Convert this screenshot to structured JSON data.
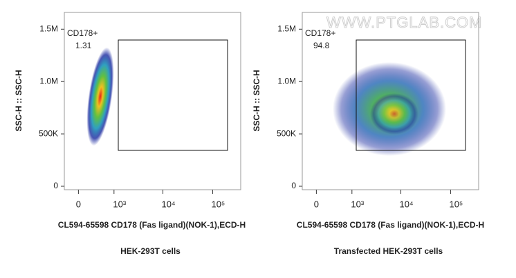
{
  "watermark": "WWW.PTGLAB.COM",
  "chart_data": [
    {
      "type": "scatter",
      "x_scale": "biexponential",
      "x_label": "CL594-65598 CD178 (Fas ligand)(NOK-1),ECD-H",
      "y_label": "SSC-H :: SSC-H",
      "caption": "HEK-293T cells",
      "gate_name": "CD178+",
      "gate_percent": 1.31,
      "xlim": [
        -280,
        367000
      ],
      "xticks": [
        0,
        {
          "value": 1000,
          "label": "10³"
        },
        {
          "value": 10000,
          "label": "10⁴"
        },
        {
          "value": 100000,
          "label": "10⁵"
        }
      ],
      "ylim": [
        -33000,
        1660000
      ],
      "yticks": [
        0,
        {
          "value": 500000,
          "label": "500K"
        },
        {
          "value": 1000000,
          "label": "1.0M"
        },
        {
          "value": 1500000,
          "label": "1.5M"
        }
      ]
    },
    {
      "type": "scatter",
      "x_scale": "biexponential",
      "x_label": "CL594-65598 CD178 (Fas ligand)(NOK-1),ECD-H",
      "y_label": "SSC-H :: SSC-H",
      "caption": "Transfected HEK-293T cells",
      "gate_name": "CD178+",
      "gate_percent": 94.8,
      "xlim": [
        -280,
        367000
      ],
      "xticks": [
        0,
        {
          "value": 1000,
          "label": "10³"
        },
        {
          "value": 10000,
          "label": "10⁴"
        },
        {
          "value": 100000,
          "label": "10⁵"
        }
      ],
      "ylim": [
        -33000,
        1660000
      ],
      "yticks": [
        0,
        {
          "value": 500000,
          "label": "500K"
        },
        {
          "value": 1000000,
          "label": "1.0M"
        },
        {
          "value": 1500000,
          "label": "1.5M"
        }
      ]
    }
  ]
}
